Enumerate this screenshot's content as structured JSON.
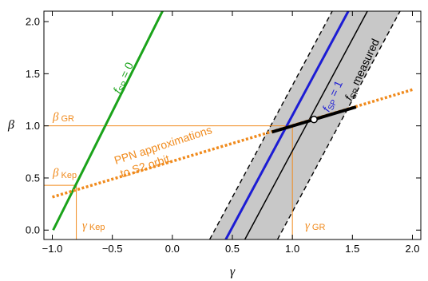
{
  "chart_data": {
    "type": "line",
    "xlabel": "γ",
    "ylabel": "β",
    "xlim": [
      -1.07,
      2.07
    ],
    "ylim": [
      -0.09,
      2.1
    ],
    "xticks": [
      "−1.0",
      "−0.5",
      "0.0",
      "0.5",
      "1.0",
      "1.5",
      "2.0"
    ],
    "xtick_values": [
      -1.0,
      -0.5,
      0.0,
      0.5,
      1.0,
      1.5,
      2.0
    ],
    "yticks": [
      "0.0",
      "0.5",
      "1.0",
      "1.5",
      "2.0"
    ],
    "ytick_values": [
      0.0,
      0.5,
      1.0,
      1.5,
      2.0
    ],
    "grid": false,
    "series": [
      {
        "name": "fSP = 0",
        "color": "#1aa31a",
        "style": "solid",
        "x": [
          -0.993,
          -0.082
        ],
        "y": [
          0.0,
          2.1
        ]
      },
      {
        "name": "fSP = 1",
        "color": "#1c1cd4",
        "style": "solid",
        "x": [
          0.445,
          1.466
        ],
        "y": [
          -0.09,
          2.1
        ]
      },
      {
        "name": "fSP measured",
        "color": "#000000",
        "style": "solid",
        "x": [
          0.604,
          1.625
        ],
        "y": [
          -0.09,
          2.1
        ]
      },
      {
        "name": "PPN approximations to S2 orbit",
        "color": "#f08a1c",
        "style": "dotted",
        "x": [
          -1.0,
          2.0
        ],
        "y": [
          0.317,
          1.347
        ]
      }
    ],
    "band": {
      "color": "#c8c8c8",
      "left_edge": {
        "x": [
          0.311,
          1.332
        ],
        "y": [
          -0.09,
          2.1
        ]
      },
      "right_edge": {
        "x": [
          0.876,
          1.897
        ],
        "y": [
          -0.09,
          2.1
        ]
      }
    },
    "measured_segment": {
      "color": "#000000",
      "x": [
        0.83,
        1.53
      ],
      "y": [
        0.941,
        1.181
      ]
    },
    "marker": {
      "x": 1.18,
      "y": 1.061,
      "style": "open-circle"
    },
    "reference_lines": [
      {
        "orientation": "horizontal",
        "y": 1.0,
        "x_end": 1.0,
        "label": "β",
        "label_sub": "GR"
      },
      {
        "orientation": "horizontal",
        "y": 0.43,
        "x_end": -0.8,
        "label": "β",
        "label_sub": "Kep"
      },
      {
        "orientation": "vertical",
        "x": 1.0,
        "y_end": 1.0,
        "label": "γ",
        "label_sub": "GR"
      },
      {
        "orientation": "vertical",
        "x": -0.8,
        "y_end": 0.43,
        "label": "γ",
        "label_sub": "Kep"
      }
    ],
    "annotations": [
      {
        "text": "PPN approximations",
        "line": 1
      },
      {
        "text": "to S2 orbit",
        "line": 2
      }
    ],
    "curve_labels": {
      "fsp0": {
        "f": "f",
        "sub": "SP",
        "rest": " = 0"
      },
      "fsp1": {
        "f": "f",
        "sub": "SP",
        "rest": " = 1"
      },
      "fspm": {
        "f": "f",
        "sub": "SP",
        "rest": " measured"
      }
    }
  }
}
